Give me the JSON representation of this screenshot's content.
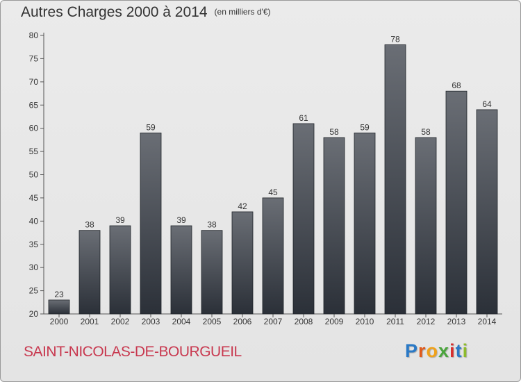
{
  "page": {
    "title": "Autres Charges 2000 à 2014",
    "unit": "(en milliers d'€)",
    "city": "SAINT-NICOLAS-DE-BOURGUEIL",
    "logo": {
      "letters": [
        "P",
        "r",
        "o",
        "x",
        "i",
        "t",
        "i"
      ],
      "colors": [
        "#2a79c6",
        "#e05a1c",
        "#f0a21b",
        "#4aa53c",
        "#d62f2f",
        "#2a79c6",
        "#8dbb2a"
      ]
    }
  },
  "chart_data": {
    "type": "bar",
    "title": "Autres Charges 2000 à 2014",
    "subtitle": "(en milliers d'€)",
    "categories": [
      "2000",
      "2001",
      "2002",
      "2003",
      "2004",
      "2005",
      "2006",
      "2007",
      "2008",
      "2009",
      "2010",
      "2011",
      "2012",
      "2013",
      "2014"
    ],
    "values": [
      23,
      38,
      39,
      59,
      39,
      38,
      42,
      45,
      61,
      58,
      59,
      78,
      58,
      68,
      64
    ],
    "ylim": [
      20,
      80
    ],
    "yticks": [
      20,
      25,
      30,
      35,
      40,
      45,
      50,
      55,
      60,
      65,
      70,
      75,
      80
    ],
    "grid": false,
    "bar_color_top": "#6a6e75",
    "bar_color_bottom": "#2b3038"
  }
}
